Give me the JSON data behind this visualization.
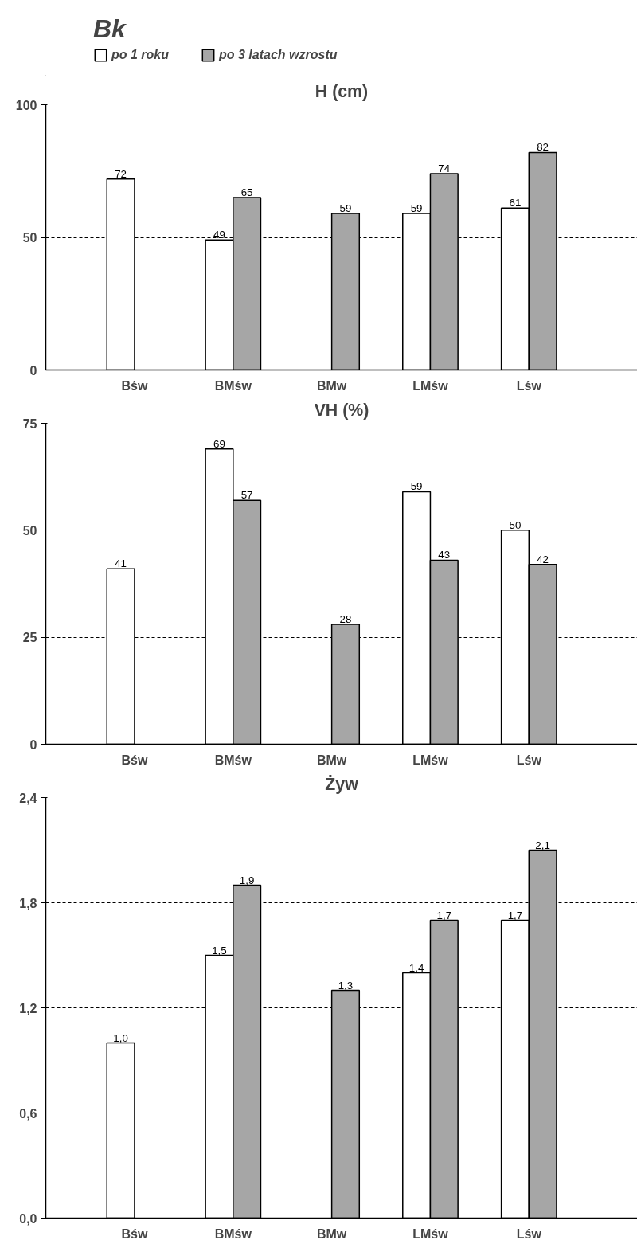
{
  "chart_data": [
    {
      "type": "bar",
      "title": "H (cm)",
      "legend_title": "Bk",
      "legend": "top",
      "categories": [
        "Bśw",
        "BMśw",
        "BMw",
        "LMśw",
        "Lśw"
      ],
      "series": [
        {
          "name": "po 1 roku",
          "color": "#ffffff",
          "values": [
            72,
            49,
            null,
            59,
            61
          ]
        },
        {
          "name": "po 3 latach wzrostu",
          "color": "#a6a6a6",
          "values": [
            null,
            65,
            59,
            74,
            82
          ]
        }
      ],
      "ylim": [
        0,
        100
      ],
      "yticks": [
        0,
        50,
        100
      ],
      "grid": "y",
      "data_labels": true
    },
    {
      "type": "bar",
      "title": "VH (%)",
      "categories": [
        "Bśw",
        "BMśw",
        "BMw",
        "LMśw",
        "Lśw"
      ],
      "series": [
        {
          "color": "#ffffff",
          "values": [
            41,
            69,
            null,
            59,
            50
          ]
        },
        {
          "color": "#a6a6a6",
          "values": [
            null,
            57,
            28,
            43,
            42
          ]
        }
      ],
      "ylim": [
        0,
        75
      ],
      "yticks": [
        0,
        25,
        50,
        75
      ],
      "grid": "y",
      "data_labels": true
    },
    {
      "type": "bar",
      "title": "Żyw",
      "categories": [
        "Bśw",
        "BMśw",
        "BMw",
        "LMśw",
        "Lśw"
      ],
      "series": [
        {
          "color": "#ffffff",
          "values": [
            1.0,
            1.5,
            null,
            1.4,
            1.7
          ],
          "value_labels": [
            "1,0",
            "1,5",
            null,
            "1,4",
            "1,7"
          ]
        },
        {
          "color": "#a6a6a6",
          "values": [
            null,
            1.9,
            1.3,
            1.7,
            2.1
          ],
          "value_labels": [
            null,
            "1,9",
            "1,3",
            "1,7",
            "2,1"
          ]
        }
      ],
      "ylim": [
        0,
        2.4
      ],
      "yticks": [
        {
          "value": 0,
          "label": "0,0"
        },
        {
          "value": 0.6,
          "label": "0,6"
        },
        {
          "value": 1.2,
          "label": "1,2"
        },
        {
          "value": 1.8,
          "label": "1,8"
        },
        {
          "value": 2.4,
          "label": "2,4"
        }
      ],
      "grid": "y"
    }
  ]
}
